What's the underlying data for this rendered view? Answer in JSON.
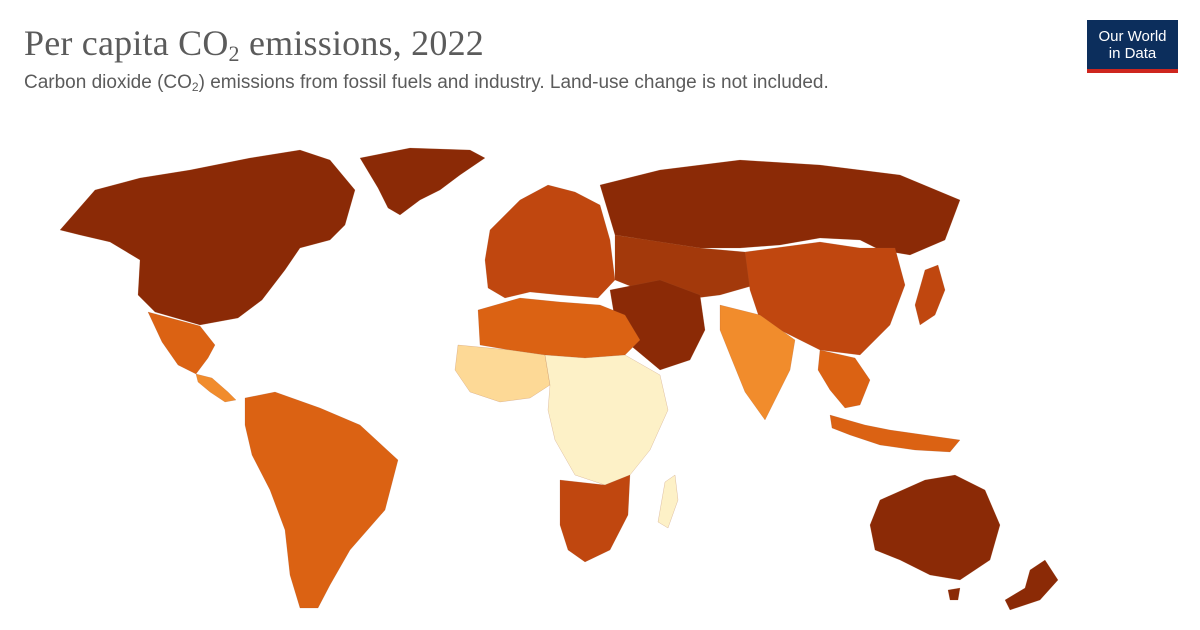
{
  "title": {
    "pre": "Per capita CO",
    "sub": "2",
    "post": " emissions, 2022"
  },
  "subtitle": {
    "pre": "Carbon dioxide (CO",
    "sub": "2",
    "post": ") emissions from fossil fuels and industry. Land-use change is not included."
  },
  "logo": {
    "line1": "Our World",
    "line2": "in Data"
  },
  "colors": {
    "very_high": "#8b2a06",
    "high": "#a3390b",
    "mid_high": "#c0470f",
    "mid": "#db6213",
    "low_mid": "#f18c2c",
    "low": "#fbb45c",
    "very_low": "#fdd996",
    "lowest": "#fdf1c7",
    "background": "#ffffff"
  },
  "regions": [
    {
      "name": "North America",
      "level": "very_high"
    },
    {
      "name": "Greenland",
      "level": "very_high"
    },
    {
      "name": "Mexico",
      "level": "mid"
    },
    {
      "name": "Central America",
      "level": "low_mid"
    },
    {
      "name": "South America",
      "level": "mid"
    },
    {
      "name": "Europe",
      "level": "mid_high"
    },
    {
      "name": "Russia",
      "level": "very_high"
    },
    {
      "name": "Central Asia",
      "level": "high"
    },
    {
      "name": "China",
      "level": "mid_high"
    },
    {
      "name": "Middle East",
      "level": "very_high"
    },
    {
      "name": "India",
      "level": "low_mid"
    },
    {
      "name": "Southeast Asia",
      "level": "mid"
    },
    {
      "name": "North Africa",
      "level": "mid"
    },
    {
      "name": "West Africa",
      "level": "very_low"
    },
    {
      "name": "Central Africa",
      "level": "lowest"
    },
    {
      "name": "Southern Africa",
      "level": "mid_high"
    },
    {
      "name": "Australia",
      "level": "very_high"
    },
    {
      "name": "Japan",
      "level": "mid_high"
    },
    {
      "name": "Indonesia",
      "level": "mid"
    }
  ]
}
